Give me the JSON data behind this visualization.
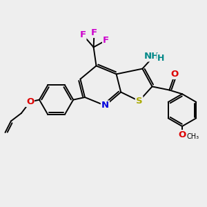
{
  "bg_color": "#eeeeee",
  "bond_color": "#000000",
  "bond_lw": 1.4,
  "colors": {
    "S": "#aaaa00",
    "N": "#0000dd",
    "O": "#dd0000",
    "F": "#cc00cc",
    "NH": "#008888",
    "H": "#008888"
  },
  "fs": 9.5,
  "fig_size": [
    3.0,
    3.0
  ],
  "dpi": 100
}
